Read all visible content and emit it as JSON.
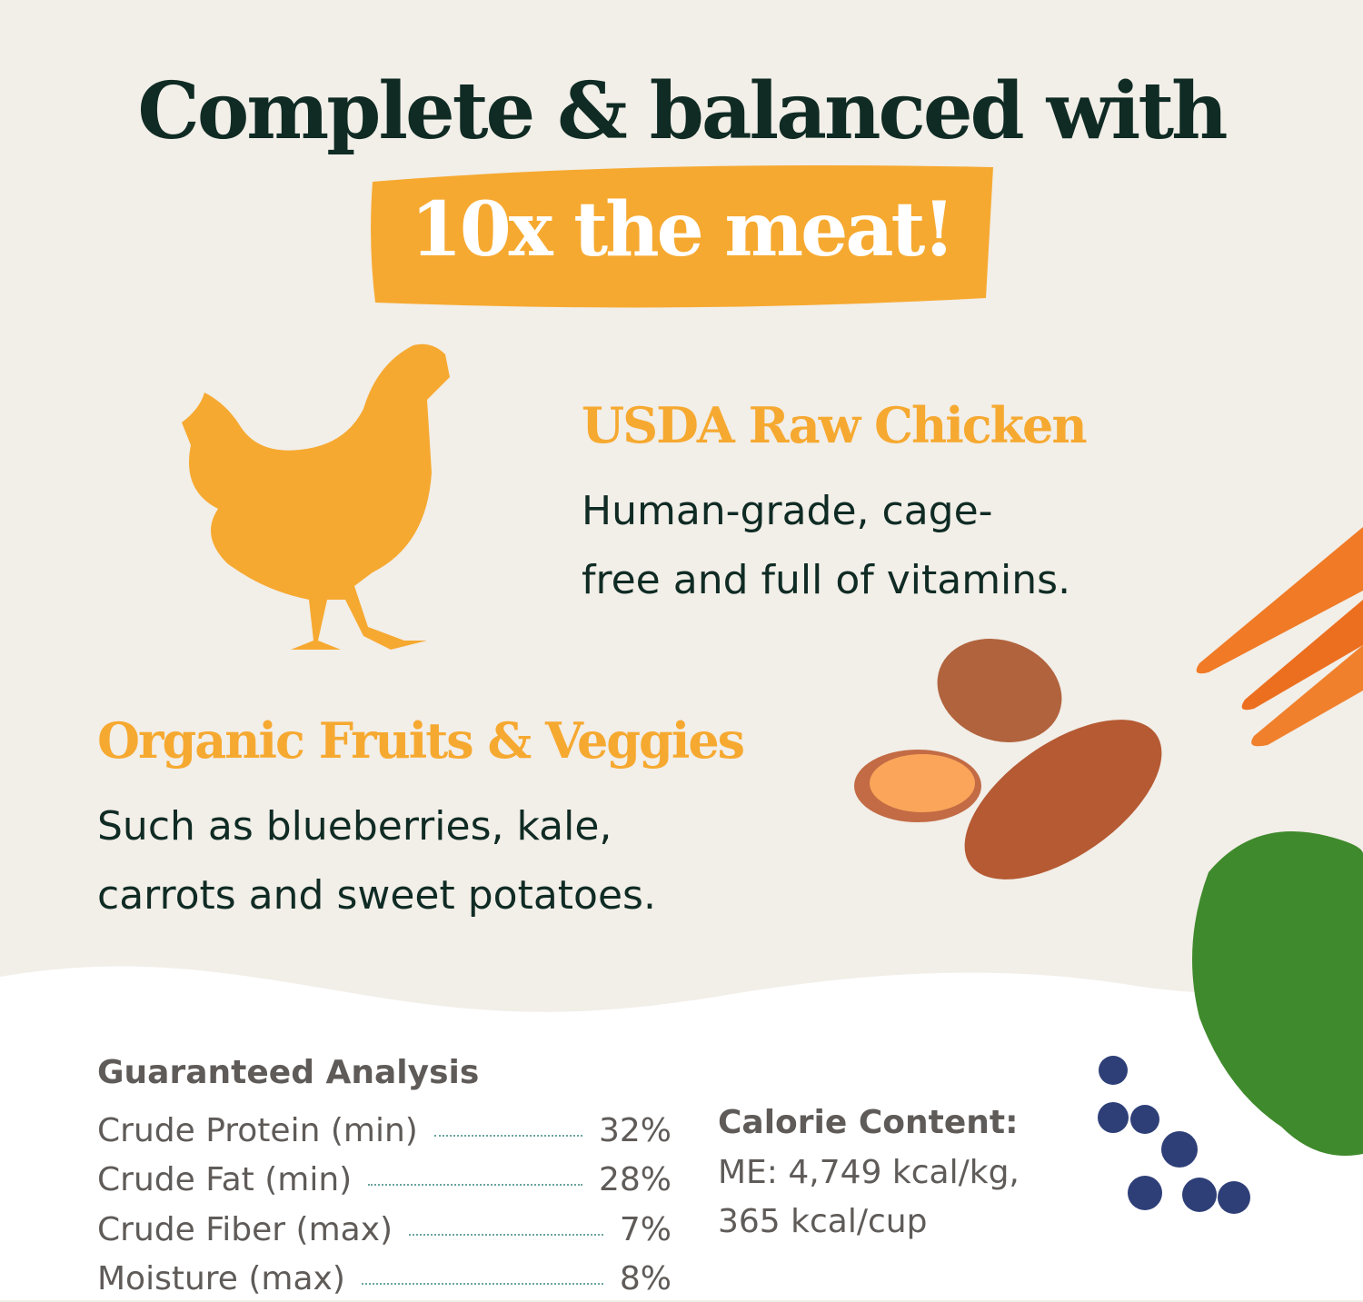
{
  "headline": "Complete & balanced with",
  "banner": "10x the meat!",
  "colors": {
    "background": "#f2eee8",
    "dark_green": "#0f2b24",
    "orange": "#f6a930",
    "gray": "#5f5b58"
  },
  "chicken": {
    "title": "USDA Raw Chicken",
    "lines": [
      "Human-grade, cage-",
      "free and full of vitamins."
    ]
  },
  "produce": {
    "title": "Organic Fruits & Veggies",
    "lines": [
      "Such as blueberries, kale,",
      "carrots and sweet potatoes."
    ]
  },
  "analysis": {
    "title": "Guaranteed Analysis",
    "rows": [
      {
        "label": "Crude Protein (min)",
        "value": "32%"
      },
      {
        "label": "Crude Fat (min)",
        "value": "28%"
      },
      {
        "label": "Crude Fiber (max)",
        "value": "7%"
      },
      {
        "label": "Moisture (max)",
        "value": "8%"
      }
    ]
  },
  "calories": {
    "title": "Calorie Content:",
    "lines": [
      "ME: 4,749 kcal/kg,",
      "365 kcal/cup"
    ]
  }
}
